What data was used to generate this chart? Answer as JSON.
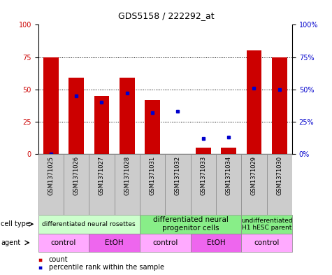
{
  "title": "GDS5158 / 222292_at",
  "samples": [
    "GSM1371025",
    "GSM1371026",
    "GSM1371027",
    "GSM1371028",
    "GSM1371031",
    "GSM1371032",
    "GSM1371033",
    "GSM1371034",
    "GSM1371029",
    "GSM1371030"
  ],
  "count_values": [
    75,
    59,
    45,
    59,
    42,
    0,
    5,
    5,
    80,
    75
  ],
  "percentile_values": [
    0,
    45,
    40,
    47,
    32,
    33,
    12,
    13,
    51,
    50
  ],
  "bar_color": "#cc0000",
  "dot_color": "#0000cc",
  "ylim": [
    0,
    100
  ],
  "yticks": [
    0,
    25,
    50,
    75,
    100
  ],
  "cell_type_groups": [
    {
      "label": "differentiated neural rosettes",
      "start": 0,
      "end": 3,
      "color": "#ccffcc",
      "fontsize": 6.5
    },
    {
      "label": "differentiated neural\nprogenitor cells",
      "start": 4,
      "end": 7,
      "color": "#88ee88",
      "fontsize": 7.5
    },
    {
      "label": "undifferentiated\nH1 hESC parent",
      "start": 8,
      "end": 9,
      "color": "#88ee88",
      "fontsize": 6.5
    }
  ],
  "agent_groups": [
    {
      "label": "control",
      "start": 0,
      "end": 1,
      "color": "#ffaaff"
    },
    {
      "label": "EtOH",
      "start": 2,
      "end": 3,
      "color": "#ee66ee"
    },
    {
      "label": "control",
      "start": 4,
      "end": 5,
      "color": "#ffaaff"
    },
    {
      "label": "EtOH",
      "start": 6,
      "end": 7,
      "color": "#ee66ee"
    },
    {
      "label": "control",
      "start": 8,
      "end": 9,
      "color": "#ffaaff"
    }
  ],
  "tick_label_color_left": "#cc0000",
  "tick_label_color_right": "#0000cc",
  "sample_col_color": "#cccccc"
}
